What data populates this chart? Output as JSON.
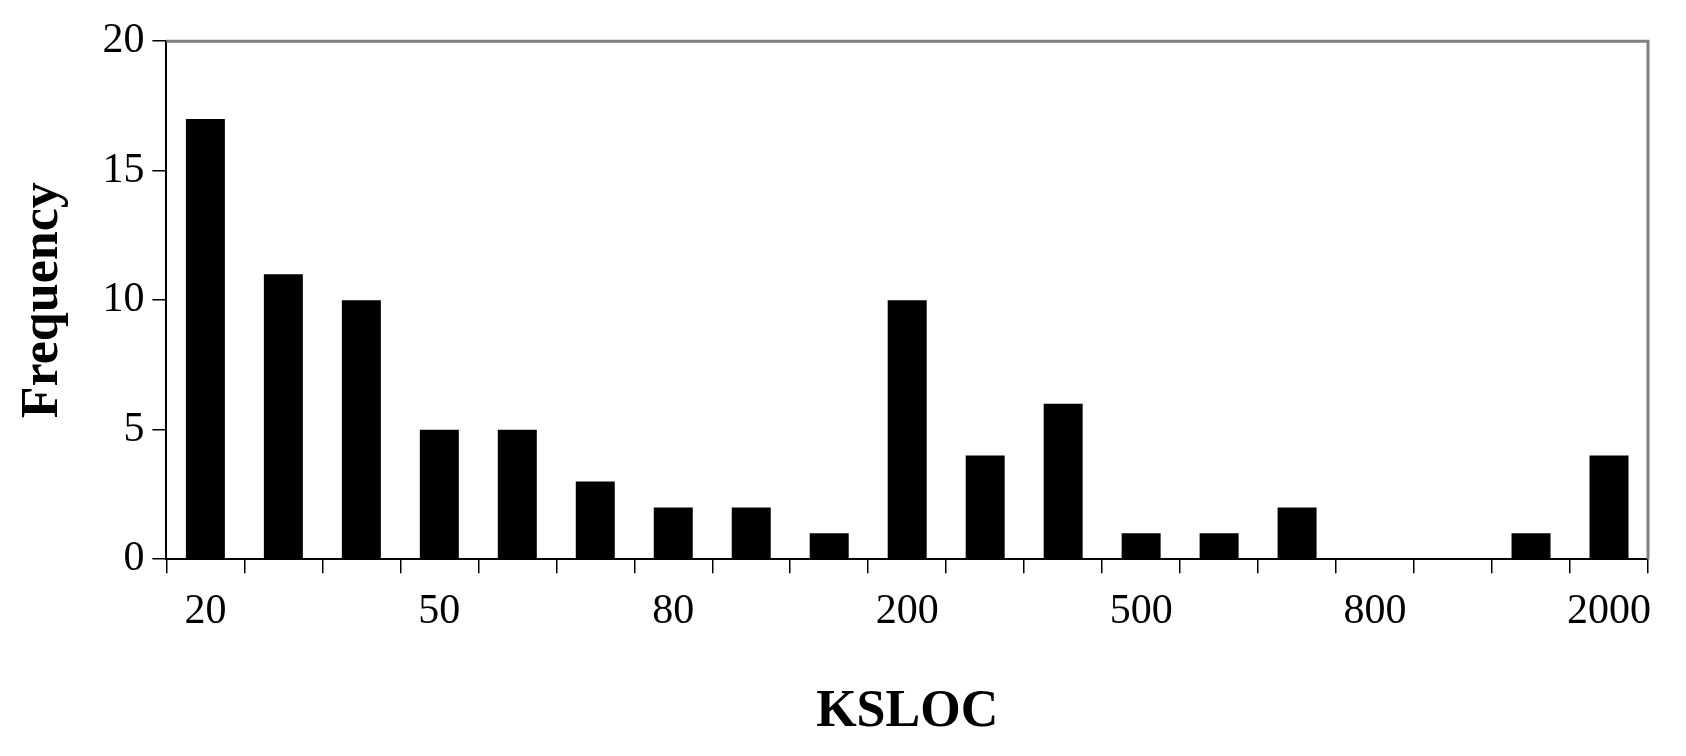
{
  "chart_data": {
    "type": "bar",
    "xlabel": "KSLOC",
    "ylabel": "Frequency",
    "categories": [
      "20",
      null,
      null,
      "50",
      null,
      null,
      "80",
      null,
      null,
      "200",
      null,
      null,
      "500",
      null,
      null,
      "800",
      null,
      null,
      "2000"
    ],
    "values": [
      17,
      11,
      10,
      5,
      5,
      3,
      2,
      2,
      1,
      10,
      4,
      6,
      1,
      1,
      2,
      0,
      0,
      1,
      4
    ],
    "color": "#000000",
    "ylim": [
      0,
      20
    ],
    "yticks": [
      0,
      5,
      10,
      15,
      20
    ],
    "grid": false,
    "legend": false
  }
}
